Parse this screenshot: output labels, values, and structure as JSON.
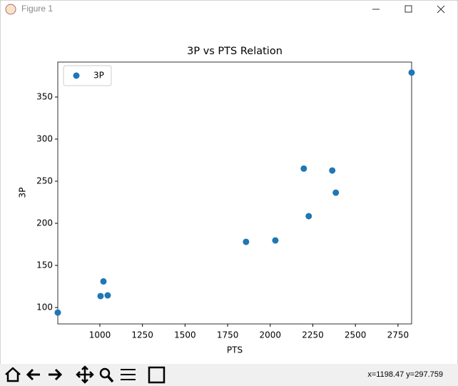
{
  "window": {
    "title": "Figure 1"
  },
  "status": {
    "coords": "x=1198.47    y=297.759"
  },
  "chart_data": {
    "type": "scatter",
    "title": "3P vs PTS Relation",
    "x_label": "PTS",
    "y_label": "3P",
    "series": [
      {
        "name": "3P",
        "color": "#1f77b4",
        "x": [
          753,
          1004,
          1021,
          1046,
          1858,
          2030,
          2197,
          2226,
          2364,
          2385,
          2830
        ],
        "values": [
          94,
          113.6,
          131,
          114.4,
          178,
          179.7,
          265,
          208.5,
          262.7,
          236.4,
          379
        ]
      }
    ],
    "xlim": [
      753,
      2830
    ],
    "ylim": [
      80.5,
      391.5
    ],
    "xticks": [
      1000,
      1250,
      1500,
      1750,
      2000,
      2250,
      2500,
      2750
    ],
    "yticks": [
      100,
      150,
      200,
      250,
      300,
      350
    ],
    "legend": "upper left",
    "grid": false
  }
}
